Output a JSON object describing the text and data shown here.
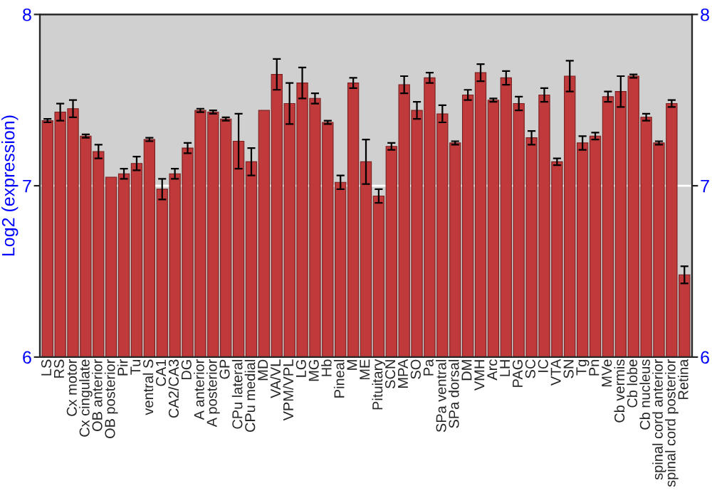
{
  "chart_data": {
    "type": "bar",
    "ylabel": "Log2 (expression)",
    "categories": [
      "LS",
      "RS",
      "Cx motor",
      "Cx cingulate",
      "OB anterior",
      "OB posterior",
      "Pir",
      "Tu",
      "ventral S",
      "CA1",
      "CA2/CA3",
      "DG",
      "A anterior",
      "A posterior",
      "GP",
      "CPu lateral",
      "CPu medial",
      "MD",
      "VA/VL",
      "VPM/VPL",
      "LG",
      "MG",
      "Hb",
      "Pineal",
      "M",
      "ME",
      "Pituitary",
      "SCN",
      "MPA",
      "SO",
      "Pa",
      "SPa ventral",
      "SPa dorsal",
      "DM",
      "VMH",
      "Arc",
      "LH",
      "PAG",
      "SC",
      "IC",
      "VTA",
      "SN",
      "Tg",
      "Pn",
      "MVe",
      "Cb vermis",
      "Cb lobe",
      "Cb nucleus",
      "spinal cord anterior",
      "spinal cord posterior",
      "Retina"
    ],
    "values": [
      7.38,
      7.43,
      7.45,
      7.29,
      7.2,
      7.05,
      7.07,
      7.13,
      7.27,
      6.98,
      7.07,
      7.22,
      7.44,
      7.43,
      7.39,
      7.26,
      7.14,
      7.44,
      7.65,
      7.48,
      7.6,
      7.51,
      7.37,
      7.02,
      7.6,
      7.14,
      6.94,
      7.23,
      7.59,
      7.44,
      7.63,
      7.42,
      7.25,
      7.53,
      7.66,
      7.5,
      7.63,
      7.48,
      7.28,
      7.53,
      7.14,
      7.64,
      7.25,
      7.29,
      7.52,
      7.55,
      7.64,
      7.4,
      7.25,
      7.48,
      6.48
    ],
    "errors": [
      0.01,
      0.05,
      0.05,
      0.01,
      0.04,
      null,
      0.03,
      0.04,
      0.01,
      0.06,
      0.03,
      0.03,
      0.01,
      0.01,
      0.01,
      0.16,
      0.08,
      null,
      0.09,
      0.12,
      0.09,
      0.03,
      0.01,
      0.04,
      0.03,
      0.13,
      0.04,
      0.02,
      0.05,
      0.05,
      0.03,
      0.05,
      0.01,
      0.03,
      0.05,
      0.01,
      0.04,
      0.04,
      0.04,
      0.04,
      0.02,
      0.09,
      0.04,
      0.02,
      0.03,
      0.09,
      0.01,
      0.02,
      0.01,
      0.02,
      0.05
    ],
    "color": "#c0393b",
    "ylim": [
      6,
      8
    ],
    "yticks": [
      6,
      7,
      8
    ],
    "y2lim": [
      6,
      8
    ],
    "y2ticks": [
      6,
      7,
      8
    ],
    "grid": "y",
    "legend": false
  }
}
